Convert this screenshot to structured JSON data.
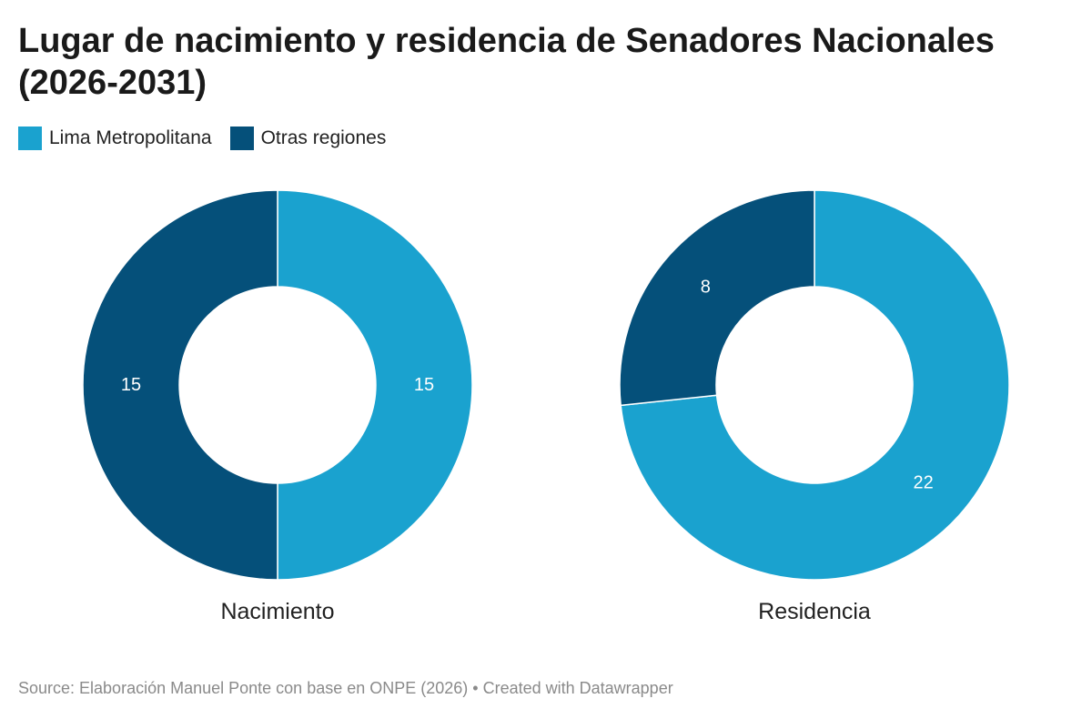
{
  "title": "Lugar de nacimiento y residencia de Senadores Nacionales (2026-2031)",
  "legend": [
    {
      "label": "Lima Metropolitana",
      "color": "#1aa2cf"
    },
    {
      "label": "Otras regiones",
      "color": "#05507a"
    }
  ],
  "chart_data": [
    {
      "type": "pie",
      "style": "donut",
      "label": "Nacimiento",
      "categories": [
        "Lima Metropolitana",
        "Otras regiones"
      ],
      "values": [
        15,
        15
      ]
    },
    {
      "type": "pie",
      "style": "donut",
      "label": "Residencia",
      "categories": [
        "Lima Metropolitana",
        "Otras regiones"
      ],
      "values": [
        22,
        8
      ]
    }
  ],
  "footer": {
    "source": "Source: Elaboración Manuel Ponte con base en ONPE (2026) • Created with Datawrapper"
  }
}
